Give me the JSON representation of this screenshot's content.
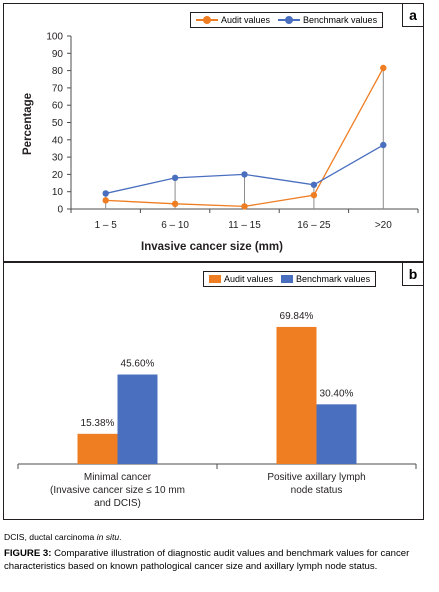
{
  "colors": {
    "audit": "#ef7d22",
    "benchmark": "#4a6fbf",
    "stem": "#8c8c8c",
    "axis": "#4d4d4d",
    "text": "#231f20"
  },
  "chart_data": [
    {
      "panel": "a",
      "type": "line",
      "categories": [
        "1 – 5",
        "6 – 10",
        "11 – 15",
        "16 – 25",
        ">20"
      ],
      "series": [
        {
          "name": "Audit values",
          "values": [
            5,
            3,
            1.5,
            8,
            81.5
          ]
        },
        {
          "name": "Benchmark values",
          "values": [
            9,
            18,
            20,
            14,
            37
          ]
        }
      ],
      "title": "",
      "xlabel": "Invasive cancer size (mm)",
      "ylabel": "Percentage",
      "ylim": [
        0,
        100
      ],
      "yticks": [
        "0",
        "10",
        "20",
        "30",
        "40",
        "50",
        "60",
        "70",
        "80",
        "90",
        "100"
      ],
      "grid": false,
      "legend_position": "top-right",
      "drop_lines": true
    },
    {
      "panel": "b",
      "type": "bar",
      "categories": [
        [
          "Minimal cancer",
          "(Invasive cancer size ≤ 10 mm",
          "and DCIS)"
        ],
        [
          "Positive axillary lymph",
          "node status"
        ]
      ],
      "series": [
        {
          "name": "Audit values",
          "values": [
            15.38,
            69.84
          ],
          "labels": [
            "15.38%",
            "69.84%"
          ]
        },
        {
          "name": "Benchmark values",
          "values": [
            45.6,
            30.4
          ],
          "labels": [
            "45.60%",
            "30.40%"
          ]
        }
      ],
      "title": "",
      "xlabel": "",
      "ylabel": "",
      "ylim": [
        0,
        80
      ],
      "grid": false,
      "legend_position": "top-right"
    }
  ],
  "panel_a": {
    "letter": "a"
  },
  "panel_b": {
    "letter": "b"
  },
  "note": {
    "abbr": "DCIS, ductal carcinoma ",
    "italic": "in situ",
    "end": "."
  },
  "caption": {
    "label": "FIGURE 3:",
    "text": " Comparative illustration of diagnostic audit values and benchmark values for cancer characteristics based on known pathological cancer size and axillary lymph node status."
  }
}
